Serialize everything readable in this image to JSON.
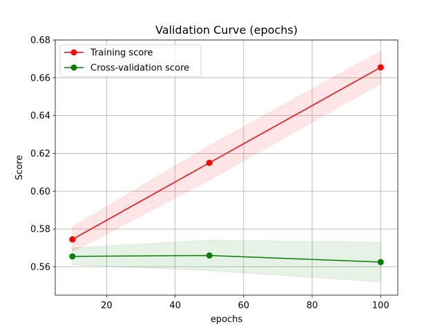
{
  "chart_data": {
    "type": "line",
    "title": "Validation Curve (epochs)",
    "xlabel": "epochs",
    "ylabel": "Score",
    "xlim": [
      5,
      105
    ],
    "ylim": [
      0.545,
      0.68
    ],
    "xticks": [
      20,
      40,
      60,
      80,
      100
    ],
    "yticks": [
      0.56,
      0.58,
      0.6,
      0.62,
      0.64,
      0.66,
      0.68
    ],
    "xtick_labels": [
      "20",
      "40",
      "60",
      "80",
      "100"
    ],
    "ytick_labels": [
      "0.56",
      "0.58",
      "0.60",
      "0.62",
      "0.64",
      "0.66",
      "0.68"
    ],
    "grid": true,
    "legend_position": "top-left",
    "x": [
      10,
      50,
      100
    ],
    "series": [
      {
        "name": "Training score",
        "color": "#ff0000",
        "band_color": "#ff0000",
        "values": [
          0.5745,
          0.615,
          0.6655
        ],
        "lower": [
          0.568,
          0.606,
          0.657
        ],
        "upper": [
          0.581,
          0.624,
          0.674
        ]
      },
      {
        "name": "Cross-validation score",
        "color": "#008000",
        "band_color": "#008000",
        "values": [
          0.5655,
          0.566,
          0.5625
        ],
        "lower": [
          0.561,
          0.558,
          0.552
        ],
        "upper": [
          0.57,
          0.574,
          0.573
        ]
      }
    ]
  }
}
